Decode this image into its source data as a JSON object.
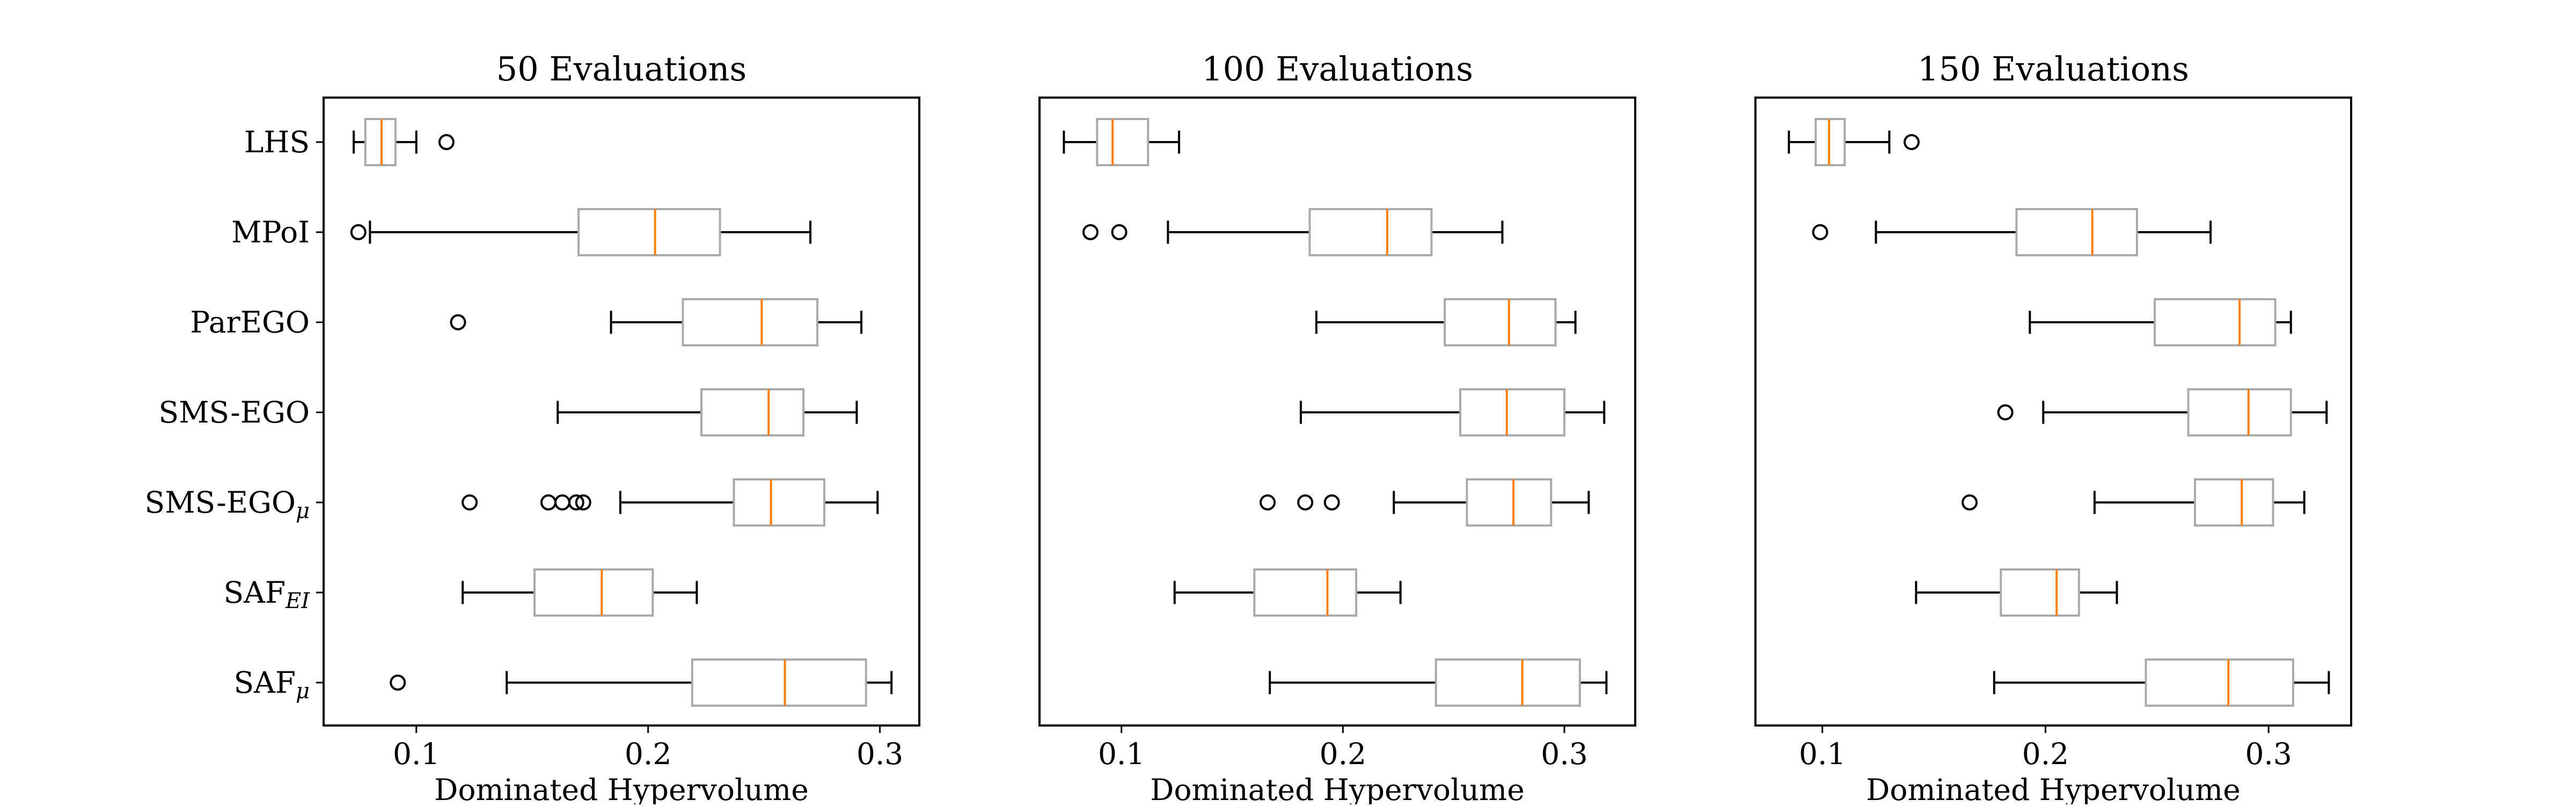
{
  "colors": {
    "box": "#aaaaaa",
    "median": "#ff7f0e",
    "whisker": "#000000",
    "frame": "#000000",
    "flier": "#000000",
    "background": "#ffffff"
  },
  "chart_data": [
    {
      "type": "boxplot",
      "title": "50 Evaluations",
      "xlabel": "Dominated Hypervolume",
      "ylabel": "",
      "xlim": [
        0.06,
        0.317
      ],
      "xticks": [
        0.1,
        0.2,
        0.3
      ],
      "xtick_labels": [
        "0.1",
        "0.2",
        "0.3"
      ],
      "grid": false,
      "show_category_labels": true,
      "series": [
        {
          "name": "LHS",
          "whisker_low": 0.073,
          "q1": 0.078,
          "median": 0.085,
          "q3": 0.091,
          "whisker_high": 0.1,
          "fliers": [
            0.113
          ]
        },
        {
          "name": "MPoI",
          "whisker_low": 0.08,
          "q1": 0.17,
          "median": 0.203,
          "q3": 0.231,
          "whisker_high": 0.27,
          "fliers": [
            0.075
          ]
        },
        {
          "name": "ParEGO",
          "whisker_low": 0.184,
          "q1": 0.215,
          "median": 0.249,
          "q3": 0.273,
          "whisker_high": 0.292,
          "fliers": [
            0.118
          ]
        },
        {
          "name": "SMS-EGO",
          "whisker_low": 0.161,
          "q1": 0.223,
          "median": 0.252,
          "q3": 0.267,
          "whisker_high": 0.29,
          "fliers": []
        },
        {
          "name": "SMS-EGOμ",
          "label_main": "SMS-EGO",
          "label_sub": "μ",
          "whisker_low": 0.188,
          "q1": 0.237,
          "median": 0.253,
          "q3": 0.276,
          "whisker_high": 0.299,
          "fliers": [
            0.123,
            0.157,
            0.163,
            0.169,
            0.172
          ]
        },
        {
          "name": "SAFEI",
          "label_main": "SAF",
          "label_sub": "EI",
          "whisker_low": 0.12,
          "q1": 0.151,
          "median": 0.18,
          "q3": 0.202,
          "whisker_high": 0.221,
          "fliers": []
        },
        {
          "name": "SAFμ",
          "label_main": "SAF",
          "label_sub": "μ",
          "whisker_low": 0.139,
          "q1": 0.219,
          "median": 0.259,
          "q3": 0.294,
          "whisker_high": 0.305,
          "fliers": [
            0.092
          ]
        }
      ]
    },
    {
      "type": "boxplot",
      "title": "100 Evaluations",
      "xlabel": "Dominated Hypervolume",
      "ylabel": "",
      "xlim": [
        0.063,
        0.332
      ],
      "xticks": [
        0.1,
        0.2,
        0.3
      ],
      "xtick_labels": [
        "0.1",
        "0.2",
        "0.3"
      ],
      "grid": false,
      "show_category_labels": false,
      "series": [
        {
          "name": "LHS",
          "whisker_low": 0.074,
          "q1": 0.089,
          "median": 0.096,
          "q3": 0.112,
          "whisker_high": 0.126,
          "fliers": []
        },
        {
          "name": "MPoI",
          "whisker_low": 0.121,
          "q1": 0.185,
          "median": 0.22,
          "q3": 0.24,
          "whisker_high": 0.272,
          "fliers": [
            0.086,
            0.099
          ]
        },
        {
          "name": "ParEGO",
          "whisker_low": 0.188,
          "q1": 0.246,
          "median": 0.275,
          "q3": 0.296,
          "whisker_high": 0.305,
          "fliers": []
        },
        {
          "name": "SMS-EGO",
          "whisker_low": 0.181,
          "q1": 0.253,
          "median": 0.274,
          "q3": 0.3,
          "whisker_high": 0.318,
          "fliers": []
        },
        {
          "name": "SMS-EGOμ",
          "whisker_low": 0.223,
          "q1": 0.256,
          "median": 0.277,
          "q3": 0.294,
          "whisker_high": 0.311,
          "fliers": [
            0.166,
            0.183,
            0.195
          ]
        },
        {
          "name": "SAFEI",
          "whisker_low": 0.124,
          "q1": 0.16,
          "median": 0.193,
          "q3": 0.206,
          "whisker_high": 0.226,
          "fliers": []
        },
        {
          "name": "SAFμ",
          "whisker_low": 0.167,
          "q1": 0.242,
          "median": 0.281,
          "q3": 0.307,
          "whisker_high": 0.319,
          "fliers": []
        }
      ]
    },
    {
      "type": "boxplot",
      "title": "150 Evaluations",
      "xlabel": "Dominated Hypervolume",
      "ylabel": "",
      "xlim": [
        0.07,
        0.337
      ],
      "xticks": [
        0.1,
        0.2,
        0.3
      ],
      "xtick_labels": [
        "0.1",
        "0.2",
        "0.3"
      ],
      "grid": false,
      "show_category_labels": false,
      "series": [
        {
          "name": "LHS",
          "whisker_low": 0.085,
          "q1": 0.097,
          "median": 0.103,
          "q3": 0.11,
          "whisker_high": 0.13,
          "fliers": [
            0.14
          ]
        },
        {
          "name": "MPoI",
          "whisker_low": 0.124,
          "q1": 0.187,
          "median": 0.221,
          "q3": 0.241,
          "whisker_high": 0.274,
          "fliers": [
            0.099
          ]
        },
        {
          "name": "ParEGO",
          "whisker_low": 0.193,
          "q1": 0.249,
          "median": 0.287,
          "q3": 0.303,
          "whisker_high": 0.31,
          "fliers": []
        },
        {
          "name": "SMS-EGO",
          "whisker_low": 0.199,
          "q1": 0.264,
          "median": 0.291,
          "q3": 0.31,
          "whisker_high": 0.326,
          "fliers": [
            0.182
          ]
        },
        {
          "name": "SMS-EGOμ",
          "whisker_low": 0.222,
          "q1": 0.267,
          "median": 0.288,
          "q3": 0.302,
          "whisker_high": 0.316,
          "fliers": [
            0.166
          ]
        },
        {
          "name": "SAFEI",
          "whisker_low": 0.142,
          "q1": 0.18,
          "median": 0.205,
          "q3": 0.215,
          "whisker_high": 0.232,
          "fliers": []
        },
        {
          "name": "SAFμ",
          "whisker_low": 0.177,
          "q1": 0.245,
          "median": 0.282,
          "q3": 0.311,
          "whisker_high": 0.327,
          "fliers": []
        }
      ]
    }
  ]
}
